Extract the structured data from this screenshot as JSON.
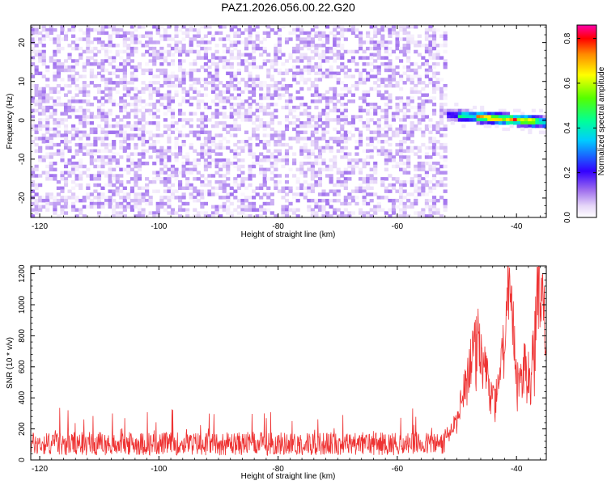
{
  "chart_data": [
    {
      "type": "heatmap",
      "title": "PAZ1.2026.056.00.22.G20",
      "xlabel": "Height of straight line (km)",
      "ylabel": "Frequency (Hz)",
      "xlim": [
        -121.5,
        -35
      ],
      "ylim": [
        -25,
        24.5
      ],
      "xticks": [
        -120,
        -100,
        -80,
        -60,
        -40
      ],
      "yticks": [
        -20,
        -10,
        0,
        10,
        20
      ],
      "colorbar": {
        "label": "Normalized spectral amplitude",
        "range": [
          0.0,
          0.86
        ],
        "ticks": [
          0.0,
          0.2,
          0.4,
          0.6,
          0.8
        ]
      },
      "features": {
        "noise_region_x": [
          -121.5,
          -52
        ],
        "noise_amplitude_range": [
          0.0,
          0.12
        ],
        "signal_start_x": -52,
        "signal_frequency_hz": [
          1.5,
          -0.5
        ],
        "signal_peak_x": [
          -45,
          -39
        ],
        "signal_peak_amplitude": 0.86
      }
    },
    {
      "type": "line",
      "xlabel": "Height of straight line (km)",
      "ylabel": "SNR (10 * v/v)",
      "xlim": [
        -121.5,
        -35
      ],
      "ylim": [
        0,
        1250
      ],
      "xticks": [
        -120,
        -100,
        -80,
        -60,
        -40
      ],
      "yticks": [
        0,
        200,
        400,
        600,
        800,
        1000,
        1200
      ],
      "series": [
        {
          "name": "SNR",
          "color": "#ee3333",
          "noise_floor": [
            30,
            180
          ],
          "noise_spikes_max": 340,
          "x": [
            -121.5,
            -110,
            -100,
            -90,
            -80,
            -70,
            -60,
            -52,
            -50,
            -49,
            -48,
            -47,
            -46.3,
            -45.5,
            -44.5,
            -43.5,
            -43,
            -42.5,
            -41.5,
            -40.5,
            -40,
            -39.5,
            -38.5,
            -37.8,
            -37,
            -36.5,
            -35.8,
            -35.3,
            -35
          ],
          "y": [
            100,
            100,
            100,
            100,
            100,
            100,
            110,
            160,
            260,
            420,
            580,
            700,
            820,
            650,
            420,
            380,
            500,
            720,
            1050,
            800,
            560,
            480,
            620,
            560,
            700,
            1150,
            1150,
            900,
            600
          ]
        }
      ]
    }
  ]
}
